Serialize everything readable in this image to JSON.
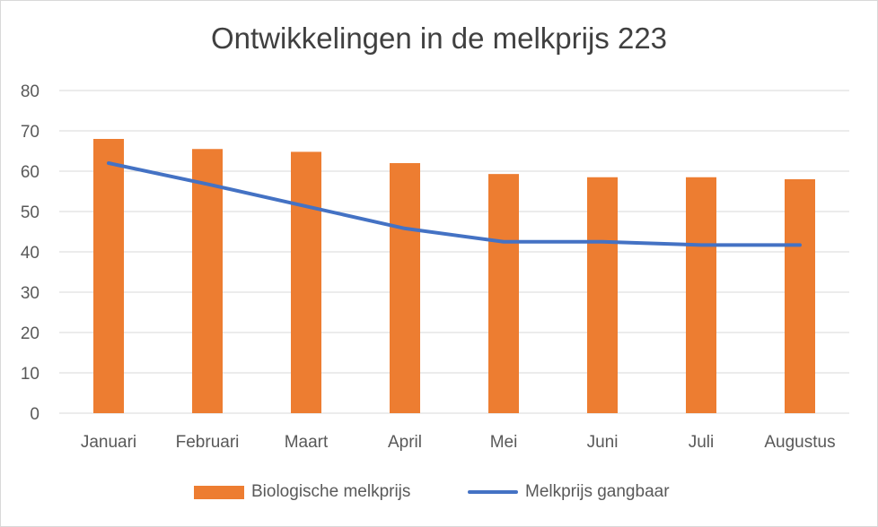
{
  "chart_data": {
    "type": "bar",
    "title": "Ontwikkelingen in de melkprijs 223",
    "categories": [
      "Januari",
      "Februari",
      "Maart",
      "April",
      "Mei",
      "Juni",
      "Juli",
      "Augustus"
    ],
    "series": [
      {
        "name": "Biologische melkprijs",
        "type": "bar",
        "color": "#ed7d31",
        "values": [
          68,
          65.5,
          64.8,
          62,
          59.3,
          58.5,
          58.5,
          58
        ]
      },
      {
        "name": "Melkprijs gangbaar",
        "type": "line",
        "color": "#4472c4",
        "values": [
          62,
          56.8,
          51.3,
          45.8,
          42.5,
          42.5,
          41.7,
          41.7
        ]
      }
    ],
    "ylim": [
      0,
      80
    ],
    "yticks": [
      0,
      10,
      20,
      30,
      40,
      50,
      60,
      70,
      80
    ],
    "xlabel": "",
    "ylabel": "",
    "grid": true,
    "legend_position": "bottom"
  }
}
